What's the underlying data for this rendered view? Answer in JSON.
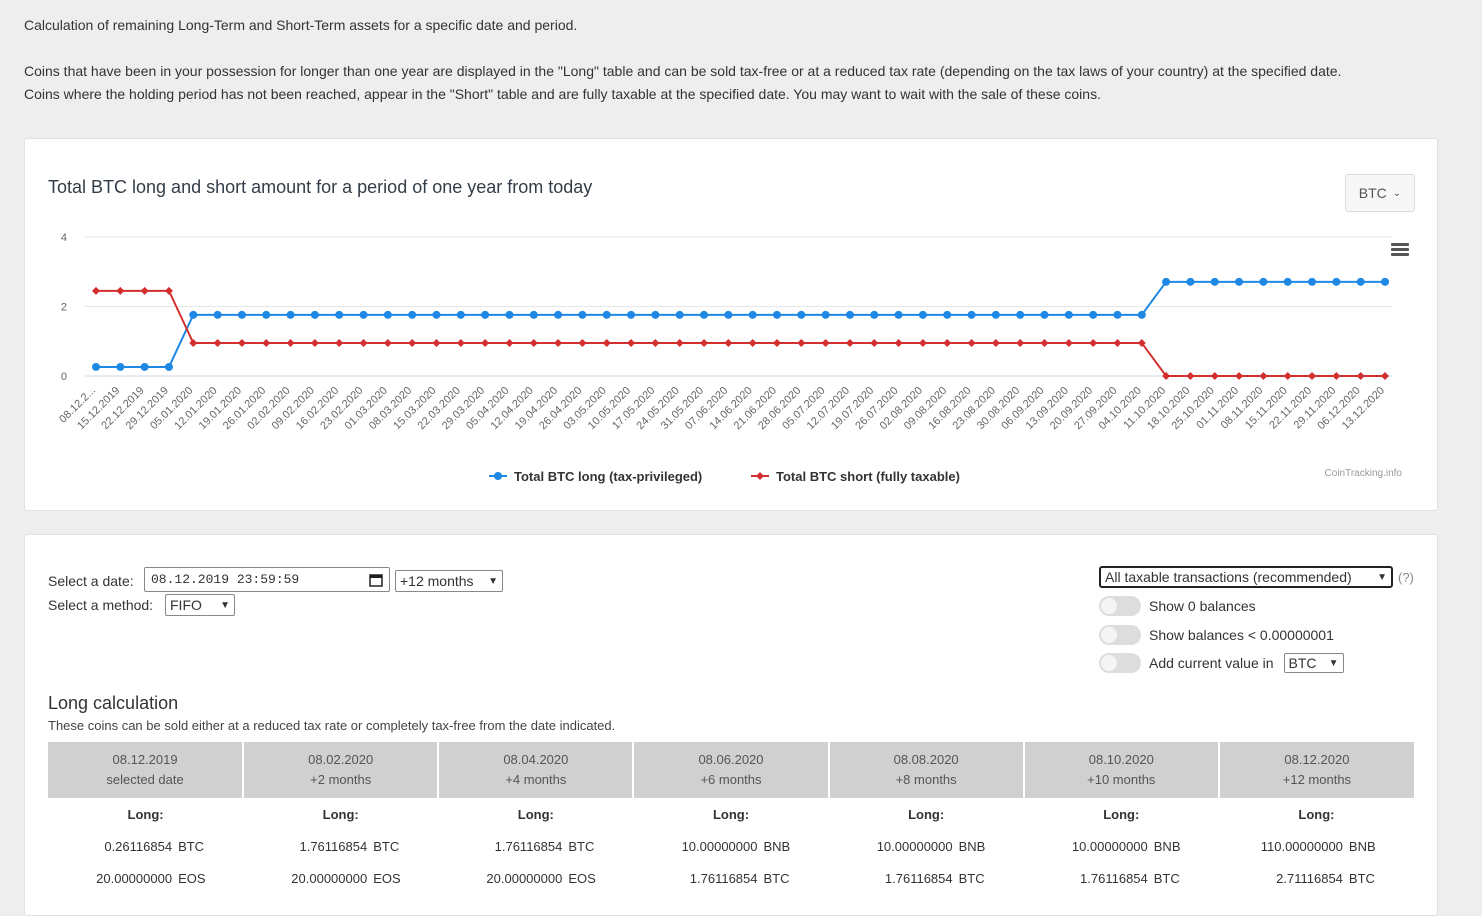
{
  "intro": {
    "line1": "Calculation of remaining Long-Term and Short-Term assets for a specific date and period.",
    "line2": "Coins that have been in your possession for longer than one year are displayed in the \"Long\" table and can be sold tax-free or at a reduced tax rate (depending on the tax laws of your country) at the specified date.",
    "line3": "Coins where the holding period has not been reached, appear in the \"Short\" table and are fully taxable at the specified date. You may want to wait with the sale of these coins."
  },
  "chart_card": {
    "coin_select": "BTC",
    "menu_icon": "hamburger-menu-icon",
    "credit": "CoinTracking.info"
  },
  "chart_data": {
    "type": "line",
    "title": "Total BTC long and short amount for a period of one year from today",
    "x_tick_labels": [
      "08.12.2...",
      "15.12.2019",
      "22.12.2019",
      "29.12.2019",
      "05.01.2020",
      "12.01.2020",
      "19.01.2020",
      "26.01.2020",
      "02.02.2020",
      "09.02.2020",
      "16.02.2020",
      "23.02.2020",
      "01.03.2020",
      "08.03.2020",
      "15.03.2020",
      "22.03.2020",
      "29.03.2020",
      "05.04.2020",
      "12.04.2020",
      "19.04.2020",
      "26.04.2020",
      "03.05.2020",
      "10.05.2020",
      "17.05.2020",
      "24.05.2020",
      "31.05.2020",
      "07.06.2020",
      "14.06.2020",
      "21.06.2020",
      "28.06.2020",
      "05.07.2020",
      "12.07.2020",
      "19.07.2020",
      "26.07.2020",
      "02.08.2020",
      "09.08.2020",
      "16.08.2020",
      "23.08.2020",
      "30.08.2020",
      "06.09.2020",
      "13.09.2020",
      "20.09.2020",
      "27.09.2020",
      "04.10.2020",
      "11.10.2020",
      "18.10.2020",
      "25.10.2020",
      "01.11.2020",
      "08.11.2020",
      "15.11.2020",
      "22.11.2020",
      "29.11.2020",
      "06.12.2020",
      "13.12.2020"
    ],
    "y_ticks": [
      0,
      2,
      4
    ],
    "ylim": [
      0,
      4
    ],
    "grid": true,
    "legend_position": "bottom",
    "series": [
      {
        "name": "Total BTC long (tax-privileged)",
        "color": "#1e88e5",
        "values": [
          0.26,
          0.26,
          0.26,
          0.26,
          1.76,
          1.76,
          1.76,
          1.76,
          1.76,
          1.76,
          1.76,
          1.76,
          1.76,
          1.76,
          1.76,
          1.76,
          1.76,
          1.76,
          1.76,
          1.76,
          1.76,
          1.76,
          1.76,
          1.76,
          1.76,
          1.76,
          1.76,
          1.76,
          1.76,
          1.76,
          1.76,
          1.76,
          1.76,
          1.76,
          1.76,
          1.76,
          1.76,
          1.76,
          1.76,
          1.76,
          1.76,
          1.76,
          1.76,
          1.76,
          2.71,
          2.71,
          2.71,
          2.71,
          2.71,
          2.71,
          2.71,
          2.71,
          2.71,
          2.71
        ]
      },
      {
        "name": "Total BTC short (fully taxable)",
        "color": "#d32f2f",
        "values": [
          2.45,
          2.45,
          2.45,
          2.45,
          0.95,
          0.95,
          0.95,
          0.95,
          0.95,
          0.95,
          0.95,
          0.95,
          0.95,
          0.95,
          0.95,
          0.95,
          0.95,
          0.95,
          0.95,
          0.95,
          0.95,
          0.95,
          0.95,
          0.95,
          0.95,
          0.95,
          0.95,
          0.95,
          0.95,
          0.95,
          0.95,
          0.95,
          0.95,
          0.95,
          0.95,
          0.95,
          0.95,
          0.95,
          0.95,
          0.95,
          0.95,
          0.95,
          0.95,
          0.95,
          0,
          0,
          0,
          0,
          0,
          0,
          0,
          0,
          0,
          0
        ]
      }
    ]
  },
  "controls": {
    "date_label": "Select a date:",
    "date_value": "08.12.2019 23:59:59",
    "period_value": "+12 months",
    "method_label": "Select a method:",
    "method_value": "FIFO",
    "tx_value": "All taxable transactions (recommended)",
    "help": "(?)",
    "toggle1": "Show 0 balances",
    "toggle2": "Show balances < 0.00000001",
    "toggle3": "Add current value in",
    "currency_value": "BTC"
  },
  "long": {
    "title": "Long calculation",
    "subtitle": "These coins can be sold either at a reduced tax rate or completely tax-free from the date indicated.",
    "row_label": "Long:",
    "columns": [
      {
        "date": "08.12.2019",
        "sub": "selected date",
        "rows": [
          [
            "0.26116854",
            "BTC"
          ],
          [
            "20.00000000",
            "EOS"
          ]
        ]
      },
      {
        "date": "08.02.2020",
        "sub": "+2 months",
        "rows": [
          [
            "1.76116854",
            "BTC"
          ],
          [
            "20.00000000",
            "EOS"
          ]
        ]
      },
      {
        "date": "08.04.2020",
        "sub": "+4 months",
        "rows": [
          [
            "1.76116854",
            "BTC"
          ],
          [
            "20.00000000",
            "EOS"
          ]
        ]
      },
      {
        "date": "08.06.2020",
        "sub": "+6 months",
        "rows": [
          [
            "10.00000000",
            "BNB"
          ],
          [
            "1.76116854",
            "BTC"
          ]
        ]
      },
      {
        "date": "08.08.2020",
        "sub": "+8 months",
        "rows": [
          [
            "10.00000000",
            "BNB"
          ],
          [
            "1.76116854",
            "BTC"
          ]
        ]
      },
      {
        "date": "08.10.2020",
        "sub": "+10 months",
        "rows": [
          [
            "10.00000000",
            "BNB"
          ],
          [
            "1.76116854",
            "BTC"
          ]
        ]
      },
      {
        "date": "08.12.2020",
        "sub": "+12 months",
        "rows": [
          [
            "110.00000000",
            "BNB"
          ],
          [
            "2.71116854",
            "BTC"
          ]
        ]
      }
    ]
  }
}
